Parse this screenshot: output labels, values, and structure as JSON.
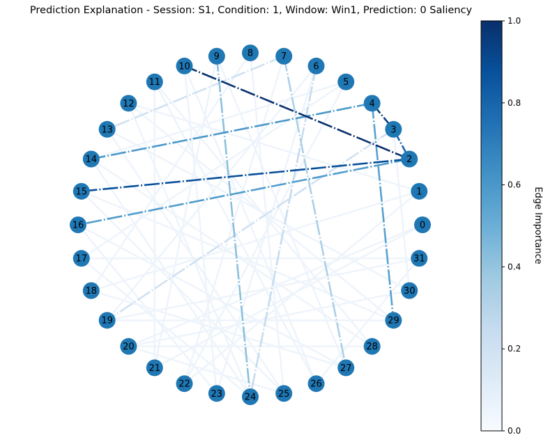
{
  "title": "Prediction Explanation - Session: S1, Condition: 1, Window: Win1, Prediction: 0 Saliency",
  "colors": {
    "node_fill": "#1f77b4",
    "node_label": "#000000",
    "colormap_low": "#f7fbff",
    "colormap_high": "#08306b"
  },
  "graph": {
    "layout": "circular",
    "nodes": [
      "0",
      "1",
      "2",
      "3",
      "4",
      "5",
      "6",
      "7",
      "8",
      "9",
      "10",
      "11",
      "12",
      "13",
      "14",
      "15",
      "16",
      "17",
      "18",
      "19",
      "20",
      "21",
      "22",
      "23",
      "24",
      "25",
      "26",
      "27",
      "28",
      "29",
      "30",
      "31"
    ],
    "salient_edges": [
      {
        "source": 2,
        "target": 10,
        "weight": 1.0
      },
      {
        "source": 3,
        "target": 4,
        "weight": 0.95
      },
      {
        "source": 2,
        "target": 15,
        "weight": 0.88
      },
      {
        "source": 2,
        "target": 3,
        "weight": 0.8
      },
      {
        "source": 4,
        "target": 14,
        "weight": 0.6
      },
      {
        "source": 2,
        "target": 16,
        "weight": 0.58
      },
      {
        "source": 4,
        "target": 29,
        "weight": 0.56
      },
      {
        "source": 9,
        "target": 24,
        "weight": 0.42
      },
      {
        "source": 7,
        "target": 27,
        "weight": 0.33
      },
      {
        "source": 6,
        "target": 24,
        "weight": 0.25
      },
      {
        "source": 7,
        "target": 13,
        "weight": 0.2
      },
      {
        "source": 3,
        "target": 19,
        "weight": 0.2
      }
    ],
    "faint_edges": [
      [
        0,
        20
      ],
      [
        1,
        12
      ],
      [
        5,
        22
      ],
      [
        8,
        18
      ],
      [
        11,
        26
      ],
      [
        13,
        30
      ],
      [
        14,
        28
      ],
      [
        15,
        25
      ],
      [
        16,
        27
      ],
      [
        17,
        31
      ],
      [
        19,
        29
      ],
      [
        21,
        9
      ],
      [
        23,
        10
      ],
      [
        24,
        12
      ],
      [
        26,
        31
      ],
      [
        28,
        20
      ],
      [
        30,
        3
      ],
      [
        5,
        17
      ],
      [
        6,
        19
      ],
      [
        8,
        25
      ],
      [
        11,
        21
      ],
      [
        12,
        29
      ],
      [
        14,
        24
      ],
      [
        16,
        23
      ],
      [
        18,
        27
      ],
      [
        20,
        30
      ],
      [
        22,
        1
      ],
      [
        23,
        6
      ],
      [
        25,
        13
      ],
      [
        27,
        9
      ],
      [
        21,
        0
      ],
      [
        1,
        18
      ],
      [
        5,
        14
      ],
      [
        7,
        22
      ],
      [
        10,
        26
      ],
      [
        11,
        28
      ],
      [
        15,
        29
      ],
      [
        17,
        24
      ],
      [
        19,
        31
      ],
      [
        20,
        25
      ]
    ]
  },
  "colorbar": {
    "label": "Edge Importance",
    "min": 0.0,
    "max": 1.0,
    "ticks": [
      "0.0",
      "0.2",
      "0.4",
      "0.6",
      "0.8",
      "1.0"
    ]
  }
}
